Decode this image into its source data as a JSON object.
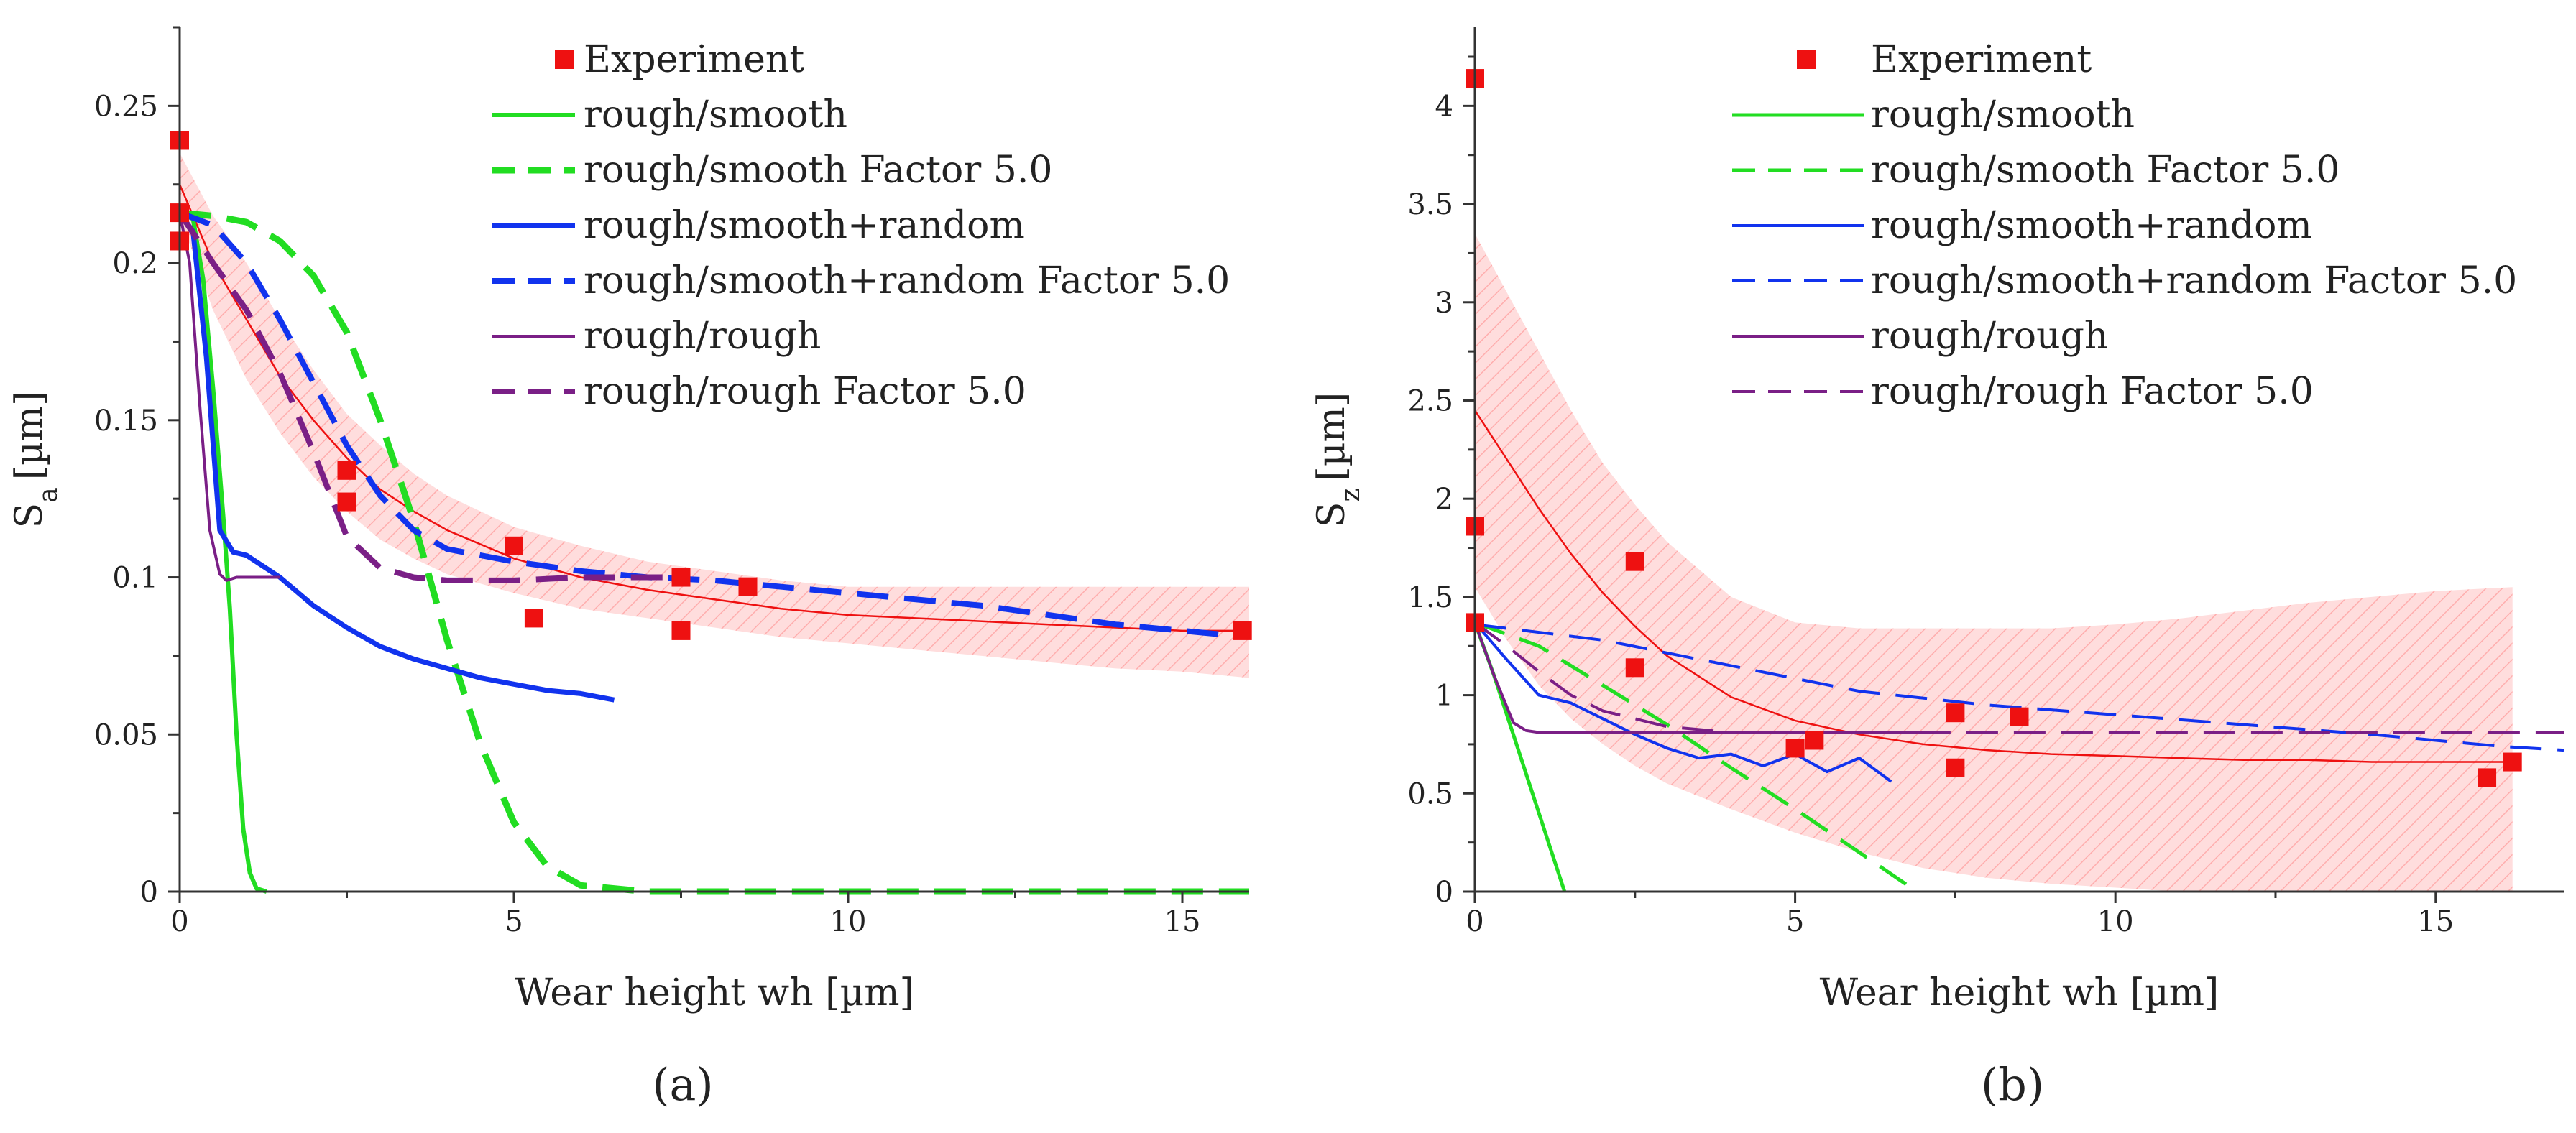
{
  "colors": {
    "green": "#22dd22",
    "blue": "#1133ee",
    "purple": "#7a1f86",
    "red": "#ee1111",
    "band": "#ffb3b3"
  },
  "chart_data": [
    {
      "type": "line",
      "panel_label": "(a)",
      "ylabel": "Sa [µm]",
      "ylabel_main": "S",
      "ylabel_sub": "a",
      "ylabel_unit": "[µm]",
      "xlabel": "Wear height wh [µm]",
      "xlim": [
        0,
        16
      ],
      "ylim": [
        0,
        0.275
      ],
      "xticks": [
        0,
        5,
        10,
        15
      ],
      "xtick_labels": [
        "0",
        "5",
        "10",
        "15"
      ],
      "yticks": [
        0,
        0.05,
        0.1,
        0.15,
        0.2,
        0.25
      ],
      "ytick_labels": [
        "0",
        "0.05",
        "0.1",
        "0.15",
        "0.2",
        "0.25"
      ],
      "legend_position": "top-right",
      "experiment": {
        "name": "Experiment",
        "x": [
          0,
          0,
          0,
          2.5,
          2.5,
          5,
          5.3,
          7.5,
          7.5,
          8.5,
          15.9
        ],
        "y": [
          0.239,
          0.216,
          0.207,
          0.134,
          0.124,
          0.11,
          0.087,
          0.1,
          0.083,
          0.097,
          0.083
        ]
      },
      "fit": {
        "x": [
          0,
          0.5,
          1,
          1.5,
          2,
          2.5,
          3,
          3.5,
          4,
          5,
          6,
          7,
          8,
          9,
          10,
          11,
          12,
          13,
          14,
          15,
          16
        ],
        "y": [
          0.225,
          0.2,
          0.182,
          0.164,
          0.15,
          0.138,
          0.128,
          0.121,
          0.115,
          0.106,
          0.1,
          0.096,
          0.093,
          0.09,
          0.088,
          0.087,
          0.086,
          0.085,
          0.084,
          0.083,
          0.083
        ],
        "upper": [
          0.235,
          0.215,
          0.2,
          0.182,
          0.166,
          0.152,
          0.142,
          0.133,
          0.126,
          0.116,
          0.11,
          0.105,
          0.102,
          0.099,
          0.097,
          0.097,
          0.097,
          0.097,
          0.097,
          0.097,
          0.097
        ],
        "lower": [
          0.215,
          0.185,
          0.163,
          0.146,
          0.132,
          0.121,
          0.112,
          0.106,
          0.101,
          0.095,
          0.09,
          0.087,
          0.084,
          0.081,
          0.079,
          0.077,
          0.075,
          0.073,
          0.071,
          0.07,
          0.068
        ]
      },
      "series": [
        {
          "name": "rough/smooth",
          "color": "green",
          "dash": false,
          "width": 6,
          "x": [
            0,
            0.2,
            0.35,
            0.5,
            0.65,
            0.75,
            0.85,
            0.95,
            1.05,
            1.15,
            1.3
          ],
          "y": [
            0.216,
            0.214,
            0.195,
            0.16,
            0.12,
            0.09,
            0.05,
            0.02,
            0.006,
            0.001,
            0
          ]
        },
        {
          "name": "rough/smooth Factor 5.0",
          "color": "green",
          "dash": true,
          "width": 9,
          "x": [
            0,
            0.5,
            1,
            1.5,
            2,
            2.5,
            3,
            3.5,
            4,
            4.5,
            5,
            5.5,
            6,
            7,
            8,
            10,
            12,
            14,
            16
          ],
          "y": [
            0.216,
            0.215,
            0.213,
            0.207,
            0.196,
            0.178,
            0.15,
            0.118,
            0.08,
            0.047,
            0.022,
            0.008,
            0.002,
            0,
            0,
            0,
            0,
            0,
            0
          ]
        },
        {
          "name": "rough/smooth+random",
          "color": "blue",
          "dash": false,
          "width": 7,
          "x": [
            0,
            0.2,
            0.4,
            0.6,
            0.8,
            1,
            1.5,
            2,
            2.5,
            3,
            3.5,
            4,
            4.5,
            5,
            5.5,
            6,
            6.5
          ],
          "y": [
            0.216,
            0.21,
            0.17,
            0.115,
            0.108,
            0.107,
            0.1,
            0.091,
            0.084,
            0.078,
            0.074,
            0.071,
            0.068,
            0.066,
            0.064,
            0.063,
            0.061
          ]
        },
        {
          "name": "rough/smooth+random Factor 5.0",
          "color": "blue",
          "dash": true,
          "width": 8,
          "x": [
            0,
            0.5,
            1,
            1.5,
            2,
            2.5,
            3,
            3.5,
            4,
            5,
            6,
            7,
            8,
            9,
            10,
            11,
            12,
            13,
            14,
            15,
            16
          ],
          "y": [
            0.216,
            0.212,
            0.2,
            0.182,
            0.162,
            0.142,
            0.126,
            0.115,
            0.109,
            0.105,
            0.102,
            0.1,
            0.099,
            0.097,
            0.095,
            0.093,
            0.091,
            0.088,
            0.085,
            0.083,
            0.081
          ]
        },
        {
          "name": "rough/rough",
          "color": "purple",
          "dash": false,
          "width": 4,
          "x": [
            0,
            0.15,
            0.3,
            0.45,
            0.6,
            0.7,
            0.85,
            1,
            1.2,
            1.5
          ],
          "y": [
            0.216,
            0.2,
            0.155,
            0.115,
            0.101,
            0.099,
            0.1,
            0.1,
            0.1,
            0.1
          ]
        },
        {
          "name": "rough/rough Factor 5.0",
          "color": "purple",
          "dash": true,
          "width": 8,
          "x": [
            0,
            0.5,
            1,
            1.5,
            2,
            2.5,
            3,
            3.5,
            4,
            5,
            6,
            7,
            7.5
          ],
          "y": [
            0.216,
            0.2,
            0.185,
            0.165,
            0.14,
            0.113,
            0.103,
            0.1,
            0.099,
            0.099,
            0.1,
            0.1,
            0.1
          ]
        }
      ]
    },
    {
      "type": "line",
      "panel_label": "(b)",
      "ylabel": "Sz [µm]",
      "ylabel_main": "S",
      "ylabel_sub": "z",
      "ylabel_unit": "[µm]",
      "xlabel": "Wear height wh [µm]",
      "xlim": [
        0,
        17
      ],
      "ylim": [
        0,
        4.4
      ],
      "xticks": [
        0,
        5,
        10,
        15
      ],
      "xtick_labels": [
        "0",
        "5",
        "10",
        "15"
      ],
      "yticks": [
        0,
        0.5,
        1,
        1.5,
        2,
        2.5,
        3,
        3.5,
        4
      ],
      "ytick_labels": [
        "0",
        "0.5",
        "1",
        "1.5",
        "2",
        "2.5",
        "3",
        "3.5",
        "4"
      ],
      "legend_position": "top-right",
      "experiment": {
        "name": "Experiment",
        "x": [
          0,
          0,
          0,
          2.5,
          2.5,
          5,
          5.3,
          7.5,
          7.5,
          8.5,
          15.8,
          16.2
        ],
        "y": [
          4.14,
          1.86,
          1.37,
          1.68,
          1.14,
          0.73,
          0.77,
          0.91,
          0.63,
          0.89,
          0.58,
          0.66
        ]
      },
      "fit": {
        "x": [
          0,
          0.5,
          1,
          1.5,
          2,
          2.5,
          3,
          4,
          5,
          6,
          7,
          8,
          9,
          10,
          11,
          12,
          13,
          14,
          15,
          16.2
        ],
        "y": [
          2.45,
          2.2,
          1.95,
          1.72,
          1.52,
          1.35,
          1.2,
          0.99,
          0.87,
          0.8,
          0.75,
          0.72,
          0.7,
          0.69,
          0.68,
          0.67,
          0.67,
          0.66,
          0.66,
          0.66
        ],
        "upper": [
          3.35,
          3.05,
          2.75,
          2.45,
          2.18,
          1.97,
          1.78,
          1.5,
          1.37,
          1.34,
          1.34,
          1.34,
          1.34,
          1.36,
          1.39,
          1.43,
          1.47,
          1.5,
          1.53,
          1.55
        ],
        "lower": [
          1.55,
          1.28,
          1.05,
          0.88,
          0.75,
          0.64,
          0.55,
          0.42,
          0.3,
          0.2,
          0.12,
          0.07,
          0.04,
          0.02,
          0,
          0,
          0,
          0,
          0,
          0
        ]
      },
      "series": [
        {
          "name": "rough/smooth",
          "color": "green",
          "dash": false,
          "width": 5,
          "x": [
            0,
            0.3,
            0.6,
            0.9,
            1.2,
            1.4
          ],
          "y": [
            1.37,
            1.1,
            0.8,
            0.5,
            0.2,
            0
          ]
        },
        {
          "name": "rough/smooth Factor 5.0",
          "color": "green",
          "dash": true,
          "width": 5,
          "x": [
            0,
            1,
            2,
            3,
            4,
            5,
            6,
            6.9
          ],
          "y": [
            1.37,
            1.25,
            1.05,
            0.85,
            0.63,
            0.42,
            0.2,
            0
          ]
        },
        {
          "name": "rough/smooth+random",
          "color": "blue",
          "dash": false,
          "width": 4,
          "x": [
            0,
            0.5,
            1,
            1.5,
            2,
            2.5,
            3,
            3.5,
            4,
            4.5,
            5,
            5.5,
            6,
            6.5
          ],
          "y": [
            1.37,
            1.18,
            1.0,
            0.96,
            0.88,
            0.8,
            0.73,
            0.68,
            0.7,
            0.64,
            0.7,
            0.61,
            0.68,
            0.56
          ]
        },
        {
          "name": "rough/smooth+random Factor 5.0",
          "color": "blue",
          "dash": true,
          "width": 4,
          "x": [
            0,
            2,
            4,
            6,
            8,
            10,
            12,
            14,
            16,
            17
          ],
          "y": [
            1.36,
            1.28,
            1.15,
            1.02,
            0.95,
            0.9,
            0.85,
            0.8,
            0.74,
            0.72
          ]
        },
        {
          "name": "rough/rough",
          "color": "purple",
          "dash": false,
          "width": 4,
          "x": [
            0,
            0.3,
            0.6,
            0.8,
            1,
            2,
            4,
            6,
            7.2
          ],
          "y": [
            1.37,
            1.1,
            0.86,
            0.82,
            0.81,
            0.81,
            0.81,
            0.81,
            0.81
          ]
        },
        {
          "name": "rough/rough Factor 5.0",
          "color": "purple",
          "dash": true,
          "width": 4,
          "x": [
            0,
            0.5,
            1,
            1.5,
            2,
            3,
            4,
            6,
            8,
            10,
            12,
            14,
            16,
            17
          ],
          "y": [
            1.37,
            1.25,
            1.12,
            1.0,
            0.92,
            0.84,
            0.81,
            0.81,
            0.81,
            0.81,
            0.81,
            0.81,
            0.81,
            0.81
          ]
        }
      ]
    }
  ]
}
